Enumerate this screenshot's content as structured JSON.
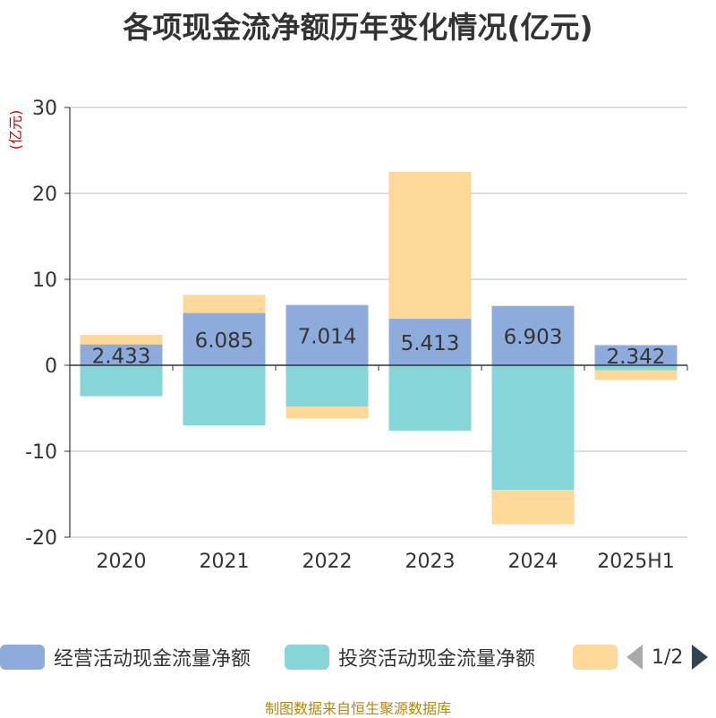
{
  "chart_data": {
    "type": "bar",
    "stacked": true,
    "title": "各项现金流净额历年变化情况(亿元)",
    "ylabel": "(亿元)",
    "ylim": [
      -20,
      30
    ],
    "yticks": [
      -20,
      -10,
      0,
      10,
      20,
      30
    ],
    "categories": [
      "2020",
      "2021",
      "2022",
      "2023",
      "2024",
      "2025H1"
    ],
    "series": [
      {
        "name": "经营活动现金流量净额",
        "color": "#8eacdb",
        "values": [
          2.433,
          6.085,
          7.014,
          5.413,
          6.903,
          2.342
        ],
        "show_labels": true
      },
      {
        "name": "投资活动现金流量净额",
        "color": "#86d5d8",
        "values": [
          -3.6,
          -7.0,
          -4.8,
          -7.6,
          -14.5,
          -0.6
        ],
        "show_labels": false
      },
      {
        "name": "",
        "color": "#fdd898",
        "values": [
          1.1,
          2.1,
          -1.4,
          17.1,
          -4.0,
          -1.1
        ],
        "show_labels": false
      }
    ],
    "grid": true,
    "legend_position": "bottom"
  },
  "legend": {
    "page_text": "1/2"
  },
  "footer": {
    "source": "制图数据来自恒生聚源数据库"
  }
}
